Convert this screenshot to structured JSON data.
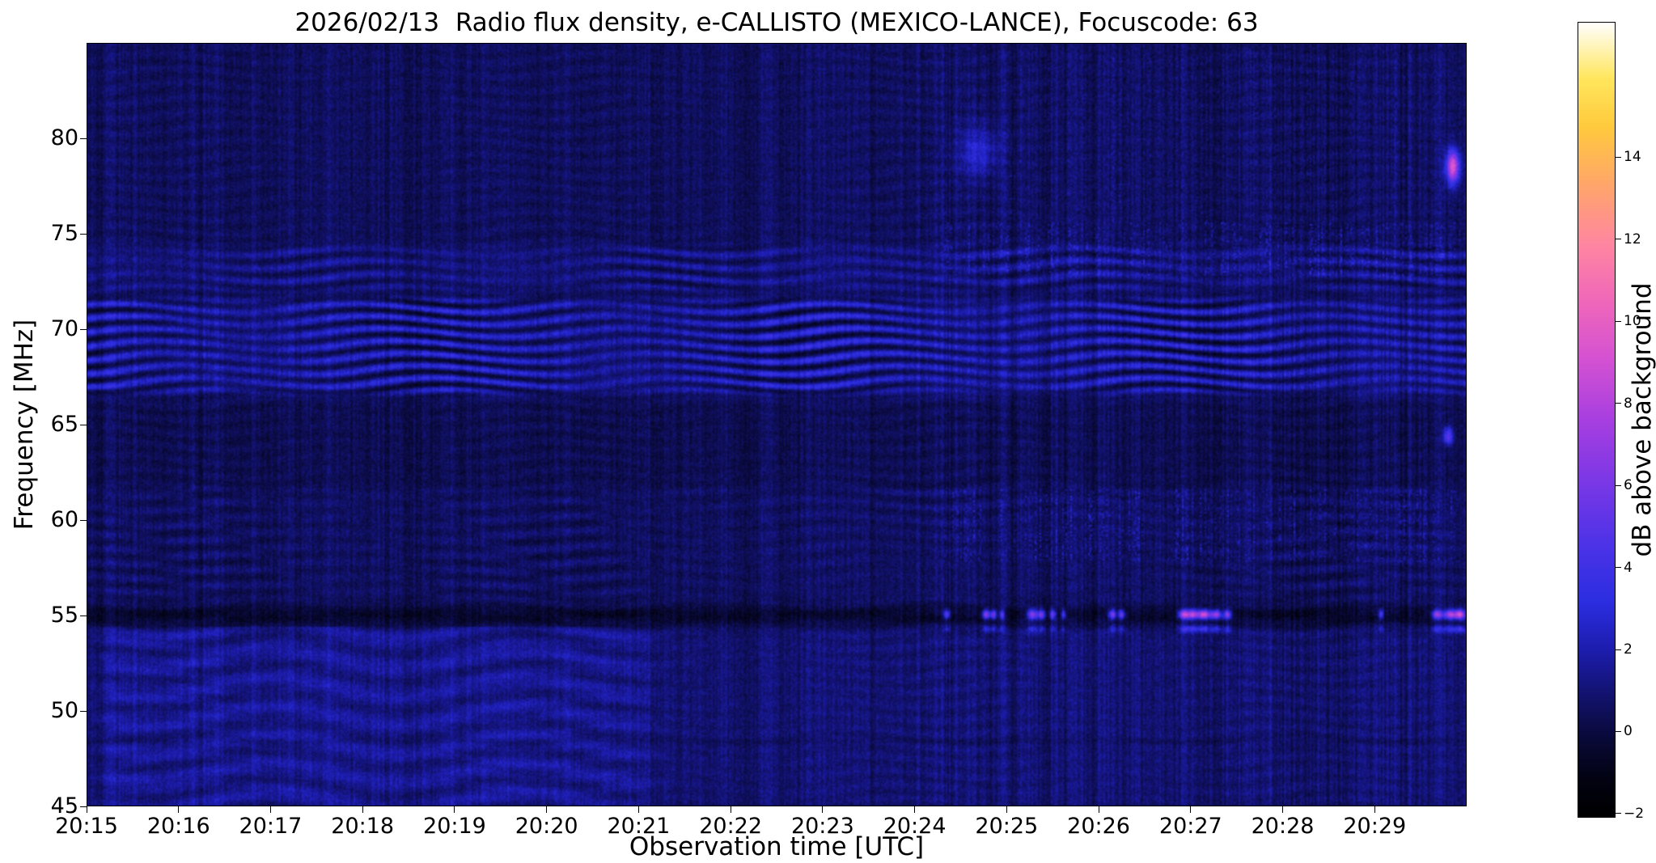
{
  "figure": {
    "title": "2026/02/13  Radio flux density, e-CALLISTO (MEXICO-LANCE), Focuscode: 63",
    "xlabel": "Observation time [UTC]",
    "ylabel": "Frequency [MHz]",
    "colorbar_label": "dB above background",
    "background_color": "#ffffff",
    "text_color": "#000000"
  },
  "chart_data": {
    "type": "heatmap",
    "title": "2026/02/13  Radio flux density, e-CALLISTO (MEXICO-LANCE), Focuscode: 63",
    "xlabel": "Observation time [UTC]",
    "ylabel": "Frequency [MHz]",
    "x_start_time": "20:15",
    "x_range_minutes": [
      0,
      15
    ],
    "x_ticks": [
      {
        "t": 0,
        "label": "20:15"
      },
      {
        "t": 1,
        "label": "20:16"
      },
      {
        "t": 2,
        "label": "20:17"
      },
      {
        "t": 3,
        "label": "20:18"
      },
      {
        "t": 4,
        "label": "20:19"
      },
      {
        "t": 5,
        "label": "20:20"
      },
      {
        "t": 6,
        "label": "20:21"
      },
      {
        "t": 7,
        "label": "20:22"
      },
      {
        "t": 8,
        "label": "20:23"
      },
      {
        "t": 9,
        "label": "20:24"
      },
      {
        "t": 10,
        "label": "20:25"
      },
      {
        "t": 11,
        "label": "20:26"
      },
      {
        "t": 12,
        "label": "20:27"
      },
      {
        "t": 13,
        "label": "20:28"
      },
      {
        "t": 14,
        "label": "20:29"
      }
    ],
    "y_range_mhz": [
      45,
      85
    ],
    "y_ticks": [
      {
        "f": 45,
        "label": "45"
      },
      {
        "f": 50,
        "label": "50"
      },
      {
        "f": 55,
        "label": "55"
      },
      {
        "f": 60,
        "label": "60"
      },
      {
        "f": 65,
        "label": "65"
      },
      {
        "f": 70,
        "label": "70"
      },
      {
        "f": 75,
        "label": "75"
      },
      {
        "f": 80,
        "label": "80"
      }
    ],
    "value_range_db": [
      -2.1,
      17.3
    ],
    "colorbar": {
      "label": "dB above background",
      "ticks": [
        {
          "v": -2,
          "label": "−2"
        },
        {
          "v": 0,
          "label": "0"
        },
        {
          "v": 2,
          "label": "2"
        },
        {
          "v": 4,
          "label": "4"
        },
        {
          "v": 6,
          "label": "6"
        },
        {
          "v": 8,
          "label": "8"
        },
        {
          "v": 10,
          "label": "10"
        },
        {
          "v": 12,
          "label": "12"
        },
        {
          "v": 14,
          "label": "14"
        }
      ]
    },
    "colormap": {
      "name": "gnuplot2-like",
      "stops": [
        [
          0.0,
          "#000000"
        ],
        [
          0.05,
          "#030314"
        ],
        [
          0.1,
          "#0a0a3a"
        ],
        [
          0.15,
          "#12126b"
        ],
        [
          0.21,
          "#1d1dae"
        ],
        [
          0.27,
          "#2c2ee0"
        ],
        [
          0.34,
          "#4c33e8"
        ],
        [
          0.42,
          "#7a38e6"
        ],
        [
          0.5,
          "#a83fe0"
        ],
        [
          0.58,
          "#d653d2"
        ],
        [
          0.65,
          "#f068ba"
        ],
        [
          0.72,
          "#ff86a2"
        ],
        [
          0.8,
          "#ffa868"
        ],
        [
          0.87,
          "#ffcb3e"
        ],
        [
          0.93,
          "#ffe75e"
        ],
        [
          1.0,
          "#ffffff"
        ]
      ]
    },
    "background_level_db": 0.55,
    "noise_db": 0.95,
    "features": [
      {
        "type": "level_band",
        "f_min": 45,
        "f_max": 54.4,
        "db": 0.35,
        "note": "slightly brighter low-frequency region"
      },
      {
        "type": "level_band",
        "f_min": 61.5,
        "f_max": 66.3,
        "db": -0.2,
        "note": "darker mid band"
      },
      {
        "type": "bright_patch",
        "t_min": 0,
        "t_max": 6.4,
        "f_min": 45,
        "f_max": 54.4,
        "db": 0.55,
        "ripple_db": 0.45,
        "note": "brighter wavy patch lower-left until ~20:21"
      },
      {
        "type": "wavy_band",
        "f_min": 45,
        "f_max": 85,
        "base_db": 0,
        "amp_db": 0.22,
        "stripe_spacing_mhz": 0.75,
        "wiggle_period_min": 2.4,
        "wiggle_amp": 2.0,
        "note": "faint global fringe texture"
      },
      {
        "type": "wavy_band",
        "f_min": 66.4,
        "f_max": 71.8,
        "base_db": 0.85,
        "amp_db": 1.7,
        "stripe_spacing_mhz": 0.65,
        "wiggle_period_min": 2.6,
        "wiggle_amp": 2.3,
        "note": "strong interference fringes 66-72 MHz"
      },
      {
        "type": "wavy_band",
        "f_min": 71.8,
        "f_max": 74.6,
        "base_db": 0.5,
        "amp_db": 0.9,
        "stripe_spacing_mhz": 0.7,
        "wiggle_period_min": 2.6,
        "wiggle_amp": 2.0,
        "note": "weaker fringes 72-74.5 MHz"
      },
      {
        "type": "wavy_band",
        "f_min": 55.8,
        "f_max": 62.0,
        "base_db": 0.05,
        "amp_db": 0.3,
        "stripe_spacing_mhz": 0.8,
        "wiggle_period_min": 2.9,
        "wiggle_amp": 2.0,
        "note": "faint fringes 56-62 MHz"
      },
      {
        "type": "dark_line",
        "f": 55.0,
        "sigma_mhz": 0.35,
        "depth_db": 1.1,
        "note": "dark line at ~55 MHz"
      },
      {
        "type": "dark_line",
        "f": 48.4,
        "sigma_mhz": 0.12,
        "depth_db": 0.35,
        "note": "thin dark line ~48.4 MHz"
      },
      {
        "type": "speckle",
        "t_min": 9.3,
        "t_max": 15,
        "f_min": 57.8,
        "f_max": 61.6,
        "db": 2.0,
        "note": "speckled enhancement 58-61.5 MHz after 20:24"
      },
      {
        "type": "speckle",
        "t_min": 9.3,
        "t_max": 15,
        "f_min": 72.8,
        "f_max": 75.6,
        "db": 2.0,
        "note": "speckled enhancement ~73-75.5 MHz after 20:24"
      },
      {
        "type": "speckle",
        "t_min": 9.3,
        "t_max": 15,
        "f_min": 75.6,
        "f_max": 84.5,
        "db": 0.9,
        "note": "faint speckle upper right"
      },
      {
        "type": "bursts",
        "f_center": 55.05,
        "sigma_mhz": 0.18,
        "echo_f": 54.3,
        "echo_scale": 0.35,
        "events": [
          [
            9.35,
            0.025,
            5.5
          ],
          [
            9.78,
            0.03,
            7
          ],
          [
            9.86,
            0.025,
            6
          ],
          [
            9.95,
            0.02,
            5
          ],
          [
            10.28,
            0.04,
            7.5
          ],
          [
            10.38,
            0.03,
            6.5
          ],
          [
            10.5,
            0.025,
            6
          ],
          [
            10.62,
            0.02,
            5
          ],
          [
            11.15,
            0.03,
            6.5
          ],
          [
            11.25,
            0.025,
            6
          ],
          [
            11.92,
            0.04,
            7.5
          ],
          [
            12.02,
            0.05,
            8.5
          ],
          [
            12.15,
            0.05,
            9.5
          ],
          [
            12.28,
            0.04,
            8
          ],
          [
            12.4,
            0.03,
            7
          ],
          [
            14.07,
            0.02,
            5
          ],
          [
            14.68,
            0.04,
            7.5
          ],
          [
            14.82,
            0.05,
            8.5
          ],
          [
            14.93,
            0.04,
            9.5
          ]
        ],
        "note": "narrowband bursts at ~55 MHz between 20:24 and 20:30"
      },
      {
        "type": "spot",
        "t": 14.85,
        "f": 78.5,
        "sigma_t": 0.05,
        "sigma_f": 0.6,
        "db": 9,
        "note": "bright pink spot ~78.5 MHz at right edge"
      },
      {
        "type": "spot",
        "t": 14.8,
        "f": 64.4,
        "sigma_t": 0.035,
        "sigma_f": 0.3,
        "db": 5,
        "note": "small magenta dot ~64.5 MHz at right edge"
      },
      {
        "type": "spot",
        "t": 9.7,
        "f": 79.3,
        "sigma_t": 0.15,
        "sigma_f": 0.9,
        "db": 2.2,
        "note": "faint enhancement ~79 MHz near 20:24.7"
      }
    ]
  }
}
